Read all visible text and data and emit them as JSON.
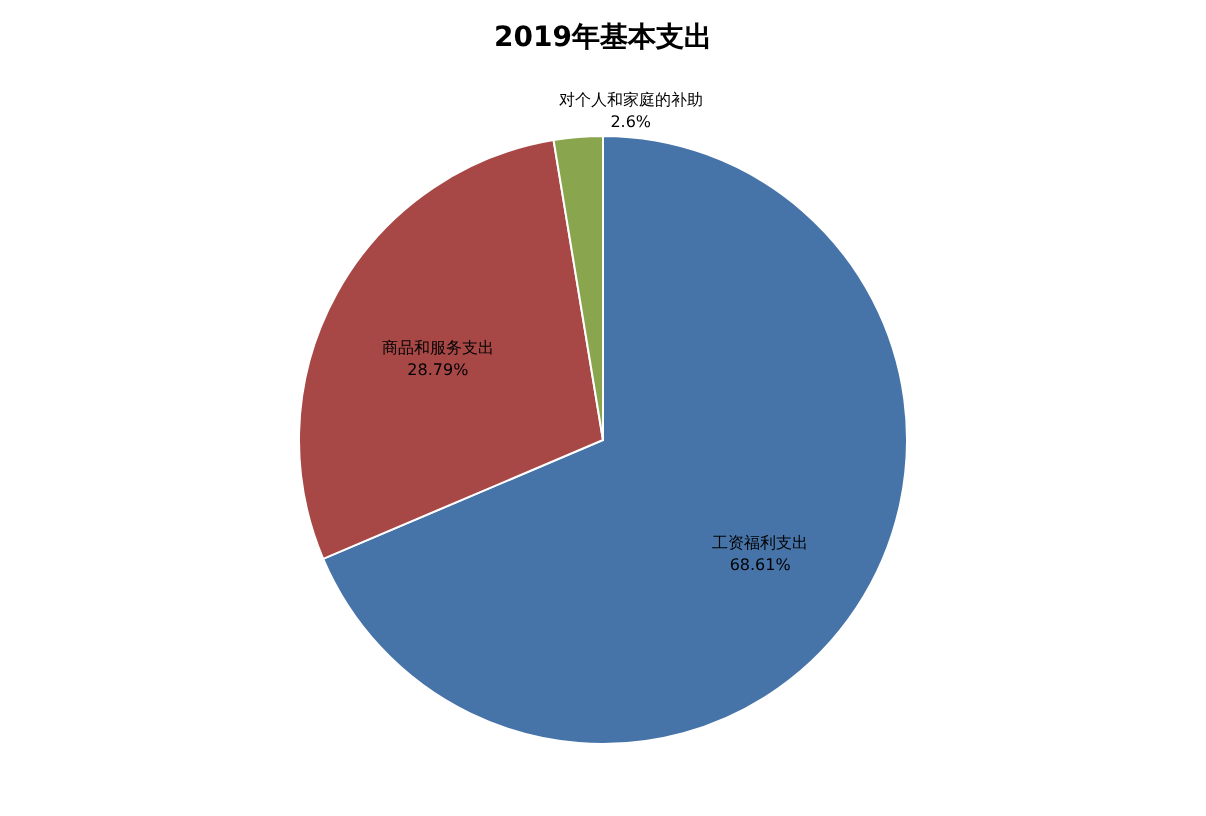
{
  "chart_data": {
    "type": "pie",
    "title": "2019年基本支出",
    "categories": [
      "工资福利支出",
      "商品和服务支出",
      "对个人和家庭的补助"
    ],
    "values": [
      68.61,
      28.79,
      2.6
    ],
    "value_labels": [
      "68.61%",
      "28.79%",
      "2.6%"
    ],
    "colors": [
      "#4674a9",
      "#a84846",
      "#89a54e"
    ],
    "legend": false
  }
}
